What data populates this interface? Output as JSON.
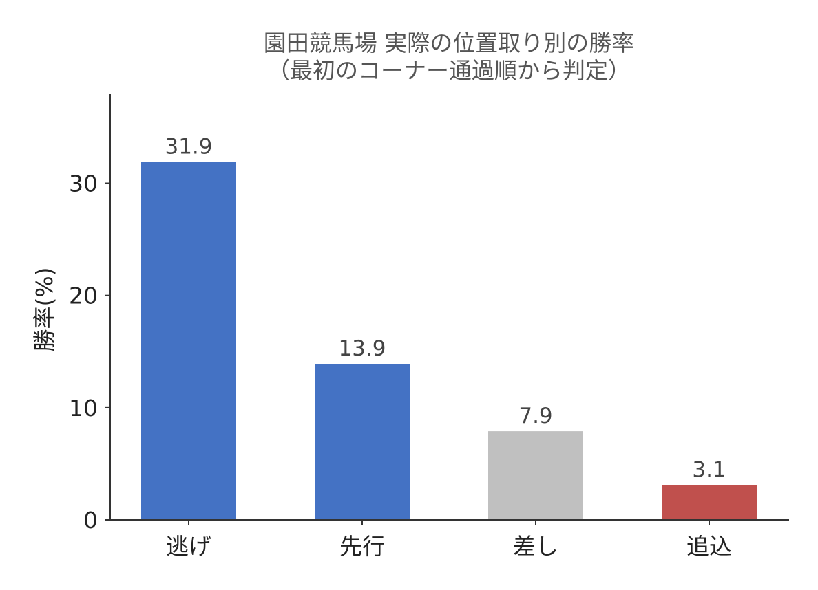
{
  "chart_data": {
    "type": "bar",
    "title": "園田競馬場 実際の位置取り別の勝率",
    "subtitle": "（最初のコーナー通過順から判定）",
    "xlabel": "",
    "ylabel": "勝率(%)",
    "categories": [
      "逃げ",
      "先行",
      "差し",
      "追込"
    ],
    "values": [
      31.9,
      13.9,
      7.9,
      3.1
    ],
    "value_labels": [
      "31.9",
      "13.9",
      "7.9",
      "3.1"
    ],
    "colors": [
      "#4472c4",
      "#4472c4",
      "#c0c0c0",
      "#c0504d"
    ],
    "ylim": [
      0,
      38
    ],
    "yticks": [
      0,
      10,
      20,
      30
    ],
    "grid": false,
    "legend": "none"
  }
}
